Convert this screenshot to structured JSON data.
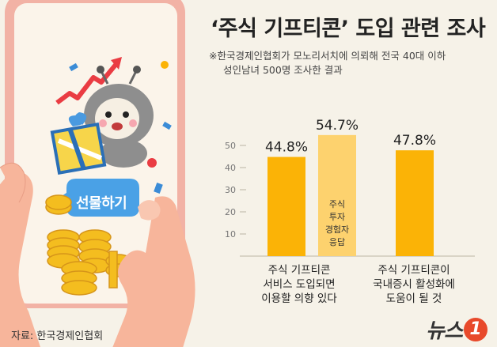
{
  "header": {
    "title": "‘주식 기프티콘’ 도입 관련 조사",
    "note_line1": "※한국경제인협회가 모노리서치에 의뢰해 전국 40대 이하",
    "note_line2": "성인남녀 500명 조사한 결과"
  },
  "illustration": {
    "button_label": "선물하기"
  },
  "footer": {
    "source": "자료: 한국경제인협회",
    "logo_text": "뉴스",
    "logo_badge": "1"
  },
  "colors": {
    "bar_main": "#fbb306",
    "bar_light": "#fdd26e",
    "axis": "#cfc9bb",
    "phone_pink": "#f2b2a5"
  },
  "chart_data": {
    "type": "bar",
    "ylim": [
      0,
      60
    ],
    "yticks": [
      10,
      20,
      30,
      40,
      50
    ],
    "grid": false,
    "bars": [
      {
        "group": 0,
        "value": 44.8,
        "label": "44.8%",
        "color": "main",
        "inner_lines": []
      },
      {
        "group": 0,
        "value": 54.7,
        "label": "54.7%",
        "color": "light",
        "inner_lines": [
          "주식",
          "투자",
          "경험자",
          "응답"
        ]
      },
      {
        "group": 1,
        "value": 47.8,
        "label": "47.8%",
        "color": "main",
        "inner_lines": []
      }
    ],
    "categories": [
      {
        "lines": [
          "주식 기프티콘",
          "서비스 도입되면",
          "이용할 의향 있다"
        ]
      },
      {
        "lines": [
          "주식 기프티콘이",
          "국내증시 활성화에",
          "도움이 될 것"
        ]
      }
    ]
  }
}
